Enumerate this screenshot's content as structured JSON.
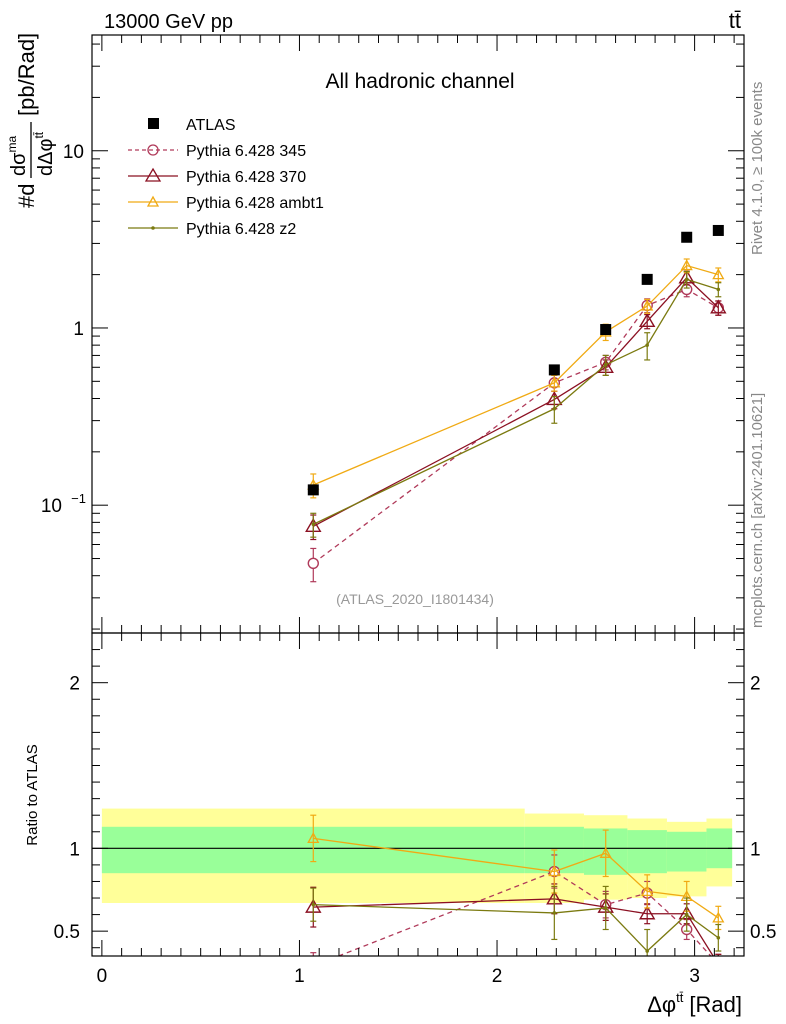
{
  "header": {
    "energy": "13000 GeV pp",
    "process": "tt̄"
  },
  "side_labels": {
    "rivet": "Rivet 4.1.0, ≥ 100k events",
    "source": "mcplots.cern.ch [arXiv:2401.10621]"
  },
  "chart_data": [
    {
      "type": "scatter",
      "title": "All hadronic channel",
      "analysis_tag": "(ATLAS_2020_I1801434)",
      "ylabel_parts": {
        "pre": "#d",
        "num": "dσ",
        "num_sup": "ma",
        "den": "dΔφ",
        "den_sup": "tt̄",
        "post": "[pb/Rad]"
      },
      "yscale": "log",
      "ylim": [
        0.019,
        45
      ],
      "xlim": [
        -0.05,
        3.25
      ],
      "y_tick_labels": [
        {
          "value": 0.1,
          "base": "10",
          "exp": "−1"
        },
        {
          "value": 1,
          "label": "1"
        },
        {
          "value": 10,
          "label": "10"
        }
      ],
      "legend": {
        "position": "top-left",
        "entries": [
          "ATLAS",
          "Pythia 6.428 345",
          "Pythia 6.428 370",
          "Pythia 6.428 ambt1",
          "Pythia 6.428 z2"
        ]
      },
      "x": [
        1.07,
        2.29,
        2.55,
        2.76,
        2.96,
        3.12
      ],
      "bins": [
        [
          0.0,
          2.14
        ],
        [
          2.14,
          2.44
        ],
        [
          2.44,
          2.66
        ],
        [
          2.66,
          2.86
        ],
        [
          2.86,
          3.06
        ],
        [
          3.06,
          3.19
        ]
      ],
      "series": [
        {
          "name": "ATLAS",
          "color": "#000000",
          "style": "data",
          "values": [
            0.122,
            0.58,
            0.98,
            1.88,
            3.25,
            3.55
          ]
        },
        {
          "name": "Pythia 6.428 345",
          "color": "#b03a5a",
          "style": "dashed-circle",
          "values": [
            0.047,
            0.49,
            0.64,
            1.34,
            1.65,
            1.3
          ],
          "errors": [
            0.01,
            0.05,
            0.06,
            0.12,
            0.15,
            0.12
          ]
        },
        {
          "name": "Pythia 6.428 370",
          "color": "#8b1022",
          "style": "solid-triangle",
          "values": [
            0.076,
            0.395,
            0.6,
            1.09,
            1.92,
            1.3
          ],
          "errors": [
            0.012,
            0.045,
            0.06,
            0.1,
            0.17,
            0.12
          ]
        },
        {
          "name": "Pythia 6.428 ambt1",
          "color": "#f0aa14",
          "style": "solid-triangle-small",
          "values": [
            0.13,
            0.49,
            0.95,
            1.33,
            2.25,
            2.0
          ],
          "errors": [
            0.02,
            0.05,
            0.1,
            0.12,
            0.2,
            0.18
          ]
        },
        {
          "name": "Pythia 6.428 z2",
          "color": "#7b7a10",
          "style": "solid-dot",
          "values": [
            0.078,
            0.35,
            0.62,
            0.8,
            1.88,
            1.65
          ],
          "errors": [
            0.012,
            0.06,
            0.08,
            0.14,
            0.2,
            0.15
          ]
        }
      ]
    },
    {
      "type": "scatter",
      "ylabel": "Ratio to ATLAS",
      "xlabel_parts": {
        "main": "Δφ",
        "sup": "tt̄",
        "unit": "[Rad]"
      },
      "ylim": [
        0.35,
        2.3
      ],
      "xlim": [
        -0.05,
        3.25
      ],
      "x_tick_labels": [
        "0",
        "1",
        "2",
        "3"
      ],
      "y_tick_labels": [
        "0.5",
        "1",
        "2"
      ],
      "band_green": [
        [
          0.85,
          1.13
        ],
        [
          0.85,
          1.13
        ],
        [
          0.84,
          1.12
        ],
        [
          0.85,
          1.11
        ],
        [
          0.86,
          1.1
        ],
        [
          0.88,
          1.12
        ]
      ],
      "band_yellow": [
        [
          0.67,
          1.24
        ],
        [
          0.67,
          1.21
        ],
        [
          0.69,
          1.2
        ],
        [
          0.7,
          1.18
        ],
        [
          0.71,
          1.16
        ],
        [
          0.77,
          1.18
        ]
      ],
      "series": [
        {
          "name": "Pythia 6.428 345",
          "values": [
            0.29,
            0.86,
            0.66,
            0.73,
            0.51,
            0.3
          ],
          "errors": [
            0.08,
            0.1,
            0.08,
            0.07,
            0.06,
            0.06
          ]
        },
        {
          "name": "Pythia 6.428 370",
          "values": [
            0.645,
            0.695,
            0.645,
            0.605,
            0.605,
            0.3
          ],
          "errors": [
            0.12,
            0.09,
            0.08,
            0.06,
            0.06,
            0.06
          ]
        },
        {
          "name": "Pythia 6.428 ambt1",
          "values": [
            1.06,
            0.86,
            0.97,
            0.74,
            0.71,
            0.58
          ],
          "errors": [
            0.14,
            0.13,
            0.14,
            0.1,
            0.09,
            0.07
          ]
        },
        {
          "name": "Pythia 6.428 z2",
          "values": [
            0.66,
            0.61,
            0.64,
            0.38,
            0.6,
            0.46
          ],
          "errors": [
            0.1,
            0.16,
            0.13,
            0.13,
            0.1,
            0.08
          ]
        }
      ]
    }
  ]
}
